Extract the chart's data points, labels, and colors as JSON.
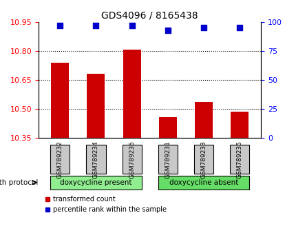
{
  "title": "GDS4096 / 8165438",
  "samples": [
    "GSM789232",
    "GSM789234",
    "GSM789236",
    "GSM789231",
    "GSM789233",
    "GSM789235"
  ],
  "bar_values": [
    10.74,
    10.68,
    10.805,
    10.455,
    10.535,
    10.485
  ],
  "percentile_values": [
    97,
    97,
    97,
    93,
    95,
    95
  ],
  "bar_color": "#cc0000",
  "percentile_color": "#0000cc",
  "ylim_left": [
    10.35,
    10.95
  ],
  "ylim_right": [
    0,
    100
  ],
  "yticks_left": [
    10.35,
    10.5,
    10.65,
    10.8,
    10.95
  ],
  "yticks_right": [
    0,
    25,
    50,
    75,
    100
  ],
  "groups": [
    {
      "label": "doxycycline present",
      "indices": [
        0,
        1,
        2
      ],
      "color": "#90ee90"
    },
    {
      "label": "doxycycline absent",
      "indices": [
        3,
        4,
        5
      ],
      "color": "#66dd66"
    }
  ],
  "group_label": "growth protocol",
  "legend_entries": [
    "transformed count",
    "percentile rank within the sample"
  ],
  "bar_width": 0.5,
  "grid_color": "#000000",
  "grid_style": "dotted",
  "background_color": "#ffffff",
  "plot_bg_color": "#ffffff",
  "label_box_color": "#c8c8c8"
}
